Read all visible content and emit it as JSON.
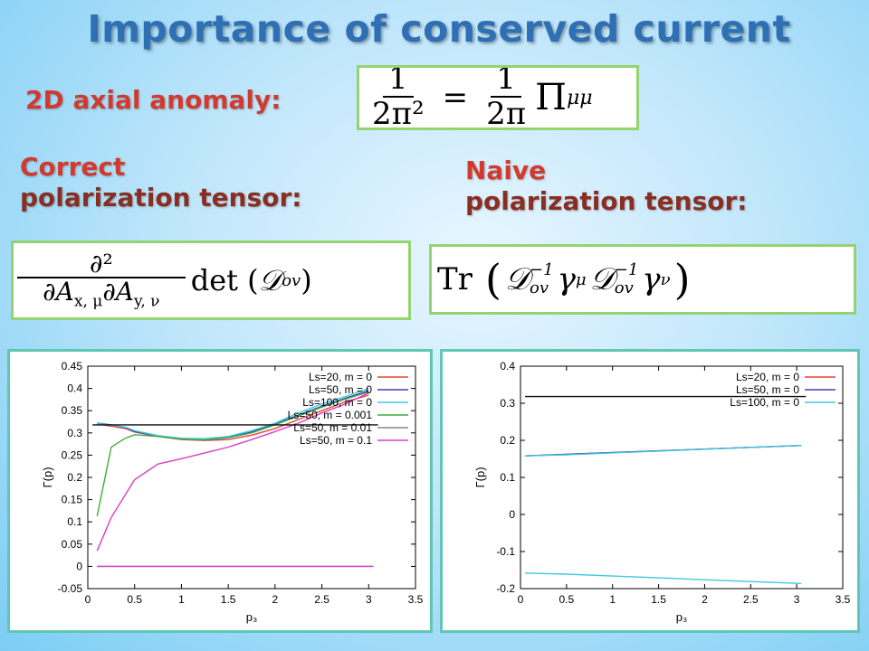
{
  "title": "Importance of conserved current",
  "anomaly_label": "2D axial anomaly:",
  "anomaly_formula": {
    "lhs_num": "1",
    "lhs_den": "2π²",
    "eq": "=",
    "rhs_num": "1",
    "rhs_den": "2π",
    "rhs_tail": "Π",
    "rhs_sub": "μμ"
  },
  "correct_label": {
    "line1": "Correct",
    "line2": "polarization tensor:"
  },
  "naive_label": {
    "line1": "Naive",
    "line2": "polarization tensor:"
  },
  "correct_formula": {
    "num": "∂²",
    "den": "∂A",
    "den_sub1": "x, μ",
    "den_mid": "∂A",
    "den_sub2": "y, ν",
    "tail": "det (",
    "script": "𝒟",
    "script_sub": "ov",
    "close": ")"
  },
  "naive_formula": {
    "tr": "Tr",
    "open": "(",
    "d1": "𝒟",
    "d1_sup": "−1",
    "d1_sub": "ov",
    "g1": "γ",
    "g1_sub": "μ",
    "d2": "𝒟",
    "d2_sup": "−1",
    "d2_sub": "ov",
    "g2": "γ",
    "g2_sub": "ν",
    "close": ")"
  },
  "colors": {
    "red": "#e8413a",
    "blue": "#3b3fb8",
    "cyan": "#41c9dc",
    "green": "#3fae3f",
    "gray": "#888888",
    "magenta": "#d83fc4",
    "black": "#111111"
  },
  "chart_data": [
    {
      "type": "line",
      "xlabel": "p₃",
      "ylabel": "Γ(p)",
      "xlim": [
        0,
        3.5
      ],
      "ylim": [
        -0.05,
        0.45
      ],
      "xticks": [
        "0",
        "0.5",
        "1",
        "1.5",
        "2",
        "2.5",
        "3",
        "3.5"
      ],
      "yticks": [
        "-0.05",
        "0",
        "0.05",
        "0.1",
        "0.15",
        "0.2",
        "0.25",
        "0.3",
        "0.35",
        "0.4",
        "0.45"
      ],
      "legend_position": "top-right",
      "series": [
        {
          "name": "Ls=20, m = 0",
          "color": "#e8413a",
          "x": [
            0.1,
            0.25,
            0.4,
            0.5,
            0.75,
            1.0,
            1.25,
            1.5,
            1.75,
            2.0,
            2.25,
            2.5,
            2.75,
            3.0
          ],
          "y": [
            0.32,
            0.315,
            0.31,
            0.302,
            0.292,
            0.285,
            0.283,
            0.285,
            0.295,
            0.31,
            0.33,
            0.35,
            0.37,
            0.385
          ]
        },
        {
          "name": "Ls=50, m = 0",
          "color": "#3b3fb8",
          "x": [
            0.1,
            0.25,
            0.4,
            0.5,
            0.75,
            1.0,
            1.25,
            1.5,
            1.75,
            2.0,
            2.25,
            2.5,
            2.75,
            3.0
          ],
          "y": [
            0.322,
            0.318,
            0.312,
            0.303,
            0.293,
            0.287,
            0.285,
            0.29,
            0.302,
            0.32,
            0.34,
            0.36,
            0.378,
            0.395
          ]
        },
        {
          "name": "Ls=100, m = 0",
          "color": "#41c9dc",
          "x": [
            0.1,
            0.25,
            0.4,
            0.5,
            0.75,
            1.0,
            1.25,
            1.5,
            1.75,
            2.0,
            2.25,
            2.5,
            2.75,
            3.0
          ],
          "y": [
            0.321,
            0.317,
            0.313,
            0.305,
            0.294,
            0.288,
            0.287,
            0.292,
            0.305,
            0.322,
            0.345,
            0.365,
            0.382,
            0.4
          ]
        },
        {
          "name": "Ls=50, m = 0.001",
          "color": "#3fae3f",
          "x": [
            0.1,
            0.25,
            0.4,
            0.5,
            0.75,
            1.0,
            1.25,
            1.5,
            1.75,
            2.0,
            2.25,
            2.5,
            2.75,
            3.0
          ],
          "y": [
            0.113,
            0.268,
            0.288,
            0.296,
            0.292,
            0.286,
            0.284,
            0.289,
            0.3,
            0.318,
            0.338,
            0.358,
            0.376,
            0.392
          ]
        },
        {
          "name": "Ls=50, m = 0.01",
          "color": "#888888",
          "x": [
            0.1,
            3.05
          ],
          "y": [
            0.0,
            0.0
          ]
        },
        {
          "name": "Ls=50, m = 0.1",
          "color": "#d83fc4",
          "x": [
            0.1,
            0.25,
            0.5,
            0.75,
            1.0,
            1.25,
            1.5,
            1.75,
            2.0,
            2.25,
            2.5,
            2.75,
            3.0
          ],
          "y": [
            0.035,
            0.11,
            0.195,
            0.23,
            0.242,
            0.255,
            0.268,
            0.285,
            0.303,
            0.322,
            0.345,
            0.365,
            0.39
          ]
        },
        {
          "name": "",
          "color": "#111111",
          "x": [
            0.05,
            3.1
          ],
          "y": [
            0.318,
            0.318
          ]
        },
        {
          "name": "",
          "color": "#d83fc4",
          "x": [
            0.1,
            3.05
          ],
          "y": [
            0.0,
            0.0
          ]
        }
      ]
    },
    {
      "type": "line",
      "xlabel": "p₃",
      "ylabel": "Γ(p)",
      "xlim": [
        0,
        3.5
      ],
      "ylim": [
        -0.2,
        0.4
      ],
      "xticks": [
        "0",
        "0.5",
        "1",
        "1.5",
        "2",
        "2.5",
        "3",
        "3.5"
      ],
      "yticks": [
        "-0.2",
        "-0.1",
        "0",
        "0.1",
        "0.2",
        "0.3",
        "0.4"
      ],
      "legend_position": "top-right",
      "series": [
        {
          "name": "Ls=20, m = 0",
          "color": "#e8413a",
          "x": [
            0.05,
            3.05
          ],
          "y": [
            0.158,
            0.186
          ]
        },
        {
          "name": "Ls=50, m = 0",
          "color": "#3b3fb8",
          "x": [
            0.05,
            3.05
          ],
          "y": [
            0.158,
            0.186
          ]
        },
        {
          "name": "Ls=100, m = 0",
          "color": "#41c9dc",
          "x": [
            0.05,
            0.5,
            1.0,
            1.5,
            2.0,
            2.5,
            3.05
          ],
          "y": [
            0.158,
            0.161,
            0.166,
            0.171,
            0.176,
            0.181,
            0.186
          ]
        },
        {
          "name": "",
          "color": "#41c9dc",
          "x": [
            0.05,
            0.5,
            1.0,
            1.5,
            2.0,
            2.5,
            3.05
          ],
          "y": [
            -0.158,
            -0.161,
            -0.166,
            -0.171,
            -0.176,
            -0.181,
            -0.186
          ]
        },
        {
          "name": "",
          "color": "#111111",
          "x": [
            0.05,
            3.1
          ],
          "y": [
            0.318,
            0.318
          ]
        }
      ]
    }
  ]
}
